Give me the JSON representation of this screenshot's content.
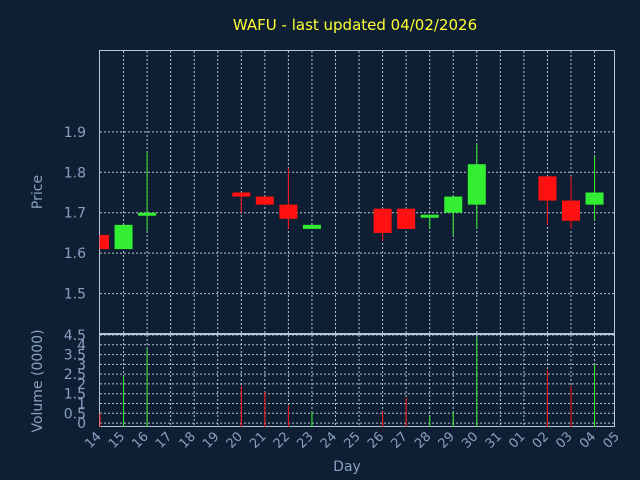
{
  "colors": {
    "background": "#0f1f33",
    "up": "#33ee33",
    "down": "#ff1111",
    "title": "#ffff33",
    "axis_text": "#8aa0c0",
    "grid": "#b8c4d8"
  },
  "chart_data": {
    "type": "candlestick",
    "title": "WAFU - last updated 04/02/2026",
    "xlabel": "Day",
    "price_panel": {
      "ylabel": "Price",
      "ylim": [
        1.4,
        2.1
      ],
      "yticks": [
        "1.5",
        "1.6",
        "1.7",
        "1.8",
        "1.9"
      ],
      "ytick_values": [
        1.5,
        1.6,
        1.7,
        1.8,
        1.9
      ]
    },
    "volume_panel": {
      "ylabel": "Volume (0000)",
      "ylim": [
        -0.2,
        4.5
      ],
      "yticks": [
        "0",
        "0.5",
        "1",
        "1.5",
        "2",
        "2.5",
        "3",
        "3.5",
        "4",
        "4.5"
      ],
      "ytick_values": [
        0,
        0.5,
        1,
        1.5,
        2,
        2.5,
        3,
        3.5,
        4,
        4.5
      ]
    },
    "x_labels": [
      "14",
      "15",
      "16",
      "17",
      "18",
      "19",
      "20",
      "21",
      "22",
      "23",
      "24",
      "25",
      "26",
      "27",
      "28",
      "29",
      "30",
      "31",
      "01",
      "02",
      "03",
      "04",
      "05"
    ],
    "grid": true,
    "candles": [
      {
        "day": 0,
        "open": 1.645,
        "close": 1.61,
        "high": 1.645,
        "low": 1.61,
        "volume": 0.5
      },
      {
        "day": 1,
        "open": 1.61,
        "close": 1.67,
        "high": 1.67,
        "low": 1.61,
        "volume": 2.4
      },
      {
        "day": 2,
        "open": 1.695,
        "close": 1.7,
        "high": 1.85,
        "low": 1.655,
        "volume": 3.8
      },
      {
        "day": 6,
        "open": 1.75,
        "close": 1.74,
        "high": 1.75,
        "low": 1.7,
        "volume": 1.9
      },
      {
        "day": 7,
        "open": 1.74,
        "close": 1.72,
        "high": 1.74,
        "low": 1.72,
        "volume": 1.6
      },
      {
        "day": 8,
        "open": 1.72,
        "close": 1.685,
        "high": 1.81,
        "low": 1.66,
        "volume": 0.9
      },
      {
        "day": 9,
        "open": 1.66,
        "close": 1.67,
        "high": 1.67,
        "low": 1.66,
        "volume": 0.6
      },
      {
        "day": 12,
        "open": 1.71,
        "close": 1.65,
        "high": 1.71,
        "low": 1.63,
        "volume": 0.6
      },
      {
        "day": 13,
        "open": 1.71,
        "close": 1.66,
        "high": 1.71,
        "low": 1.66,
        "volume": 1.3
      },
      {
        "day": 14,
        "open": 1.69,
        "close": 1.695,
        "high": 1.695,
        "low": 1.66,
        "volume": 0.4
      },
      {
        "day": 15,
        "open": 1.7,
        "close": 1.74,
        "high": 1.74,
        "low": 1.645,
        "volume": 0.6
      },
      {
        "day": 16,
        "open": 1.72,
        "close": 1.82,
        "high": 1.87,
        "low": 1.66,
        "volume": 4.4
      },
      {
        "day": 19,
        "open": 1.79,
        "close": 1.73,
        "high": 1.79,
        "low": 1.67,
        "volume": 2.7
      },
      {
        "day": 20,
        "open": 1.73,
        "close": 1.68,
        "high": 1.79,
        "low": 1.66,
        "volume": 1.9
      },
      {
        "day": 21,
        "open": 1.72,
        "close": 1.75,
        "high": 1.84,
        "low": 1.68,
        "volume": 3.0
      }
    ]
  }
}
